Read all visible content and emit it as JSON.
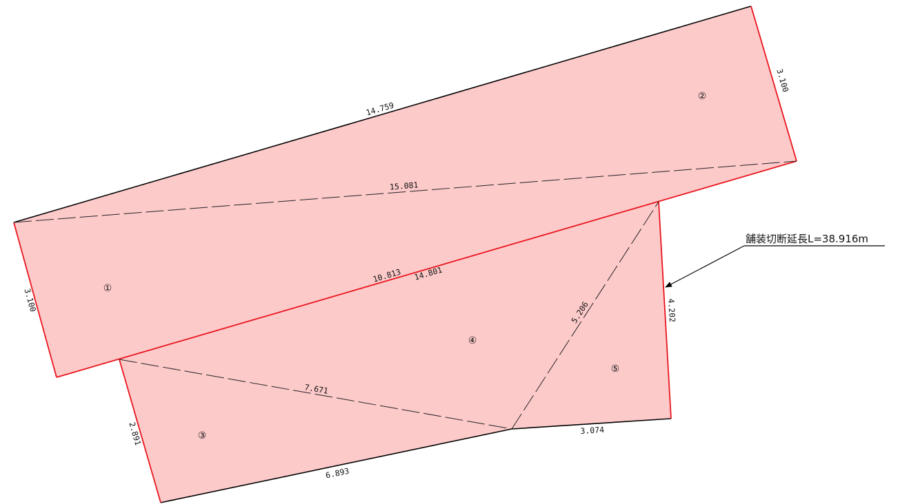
{
  "colors": {
    "fill": "#fdcaca",
    "cut_line": "#e8141c",
    "edge": "#000000",
    "dash": "#222222"
  },
  "region_labels": {
    "r1": "①",
    "r2": "②",
    "r3": "③",
    "r4": "④",
    "r5": "⑤"
  },
  "dimensions": {
    "top_edge": "14.759",
    "diag_1_2": "15.081",
    "right_top": "3.100",
    "left_top": "3.100",
    "inner_upper": "10.813",
    "inner_lower": "14.801",
    "diag_4_5": "5.206",
    "right_lower": "4.202",
    "diag_3_4": "7.671",
    "left_lower": "2.891",
    "bottom_left": "6.893",
    "bottom_right": "3.074"
  },
  "annotation": {
    "text": "舗装切断延長L=38.916m"
  }
}
